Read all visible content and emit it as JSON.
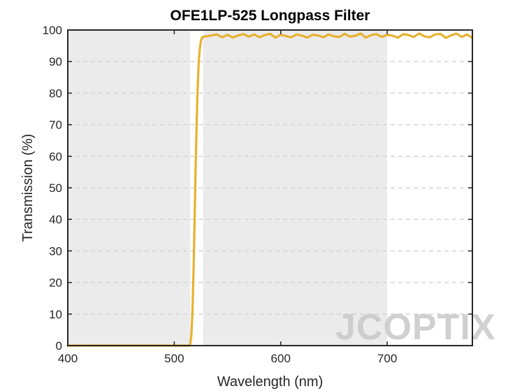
{
  "chart_data": {
    "type": "line",
    "title": "OFE1LP-525 Longpass Filter",
    "xlabel": "Wavelength (nm)",
    "ylabel": "Transmission (%)",
    "xlim": [
      400,
      780
    ],
    "ylim": [
      0,
      100
    ],
    "xticks": [
      400,
      500,
      600,
      700
    ],
    "yticks": [
      0,
      10,
      20,
      30,
      40,
      50,
      60,
      70,
      80,
      90,
      100
    ],
    "grid": "horizontal dashed",
    "shaded_regions": [
      {
        "name": "blocking-band",
        "x_range": [
          400,
          515
        ]
      },
      {
        "name": "transmission-band",
        "x_range": [
          527,
          700
        ]
      }
    ],
    "series": [
      {
        "name": "Transmission",
        "color": "#E8B12F",
        "x": [
          400,
          450,
          500,
          514,
          515,
          516,
          517,
          518,
          519,
          520,
          521,
          522,
          523,
          524,
          525,
          526,
          527,
          530,
          535,
          540,
          545,
          550,
          555,
          560,
          565,
          570,
          575,
          580,
          585,
          590,
          595,
          600,
          605,
          610,
          615,
          620,
          625,
          630,
          635,
          640,
          645,
          650,
          655,
          660,
          665,
          670,
          675,
          680,
          685,
          690,
          695,
          700,
          705,
          710,
          715,
          720,
          725,
          730,
          735,
          740,
          745,
          750,
          755,
          760,
          765,
          770,
          775,
          780
        ],
        "y": [
          0,
          0,
          0,
          0,
          0.5,
          3,
          10,
          22,
          38,
          55,
          70,
          82,
          90,
          94,
          96.5,
          97.5,
          97.8,
          98,
          98.3,
          98.6,
          97.7,
          98.5,
          97.6,
          98.3,
          98.7,
          97.9,
          98.6,
          97.7,
          98.4,
          98.8,
          97.6,
          98.5,
          98.1,
          97.7,
          98.6,
          98.2,
          97.6,
          98.5,
          98.3,
          97.7,
          98.6,
          98.0,
          97.8,
          98.8,
          97.9,
          98.2,
          98.9,
          97.6,
          98.4,
          98.7,
          97.8,
          98.5,
          98.2,
          97.6,
          98.7,
          98.4,
          97.8,
          98.9,
          98.0,
          97.7,
          98.6,
          98.8,
          97.5,
          98.3,
          98.9,
          97.8,
          98.6,
          97.5
        ]
      }
    ],
    "watermark": "JCOPTIX"
  }
}
